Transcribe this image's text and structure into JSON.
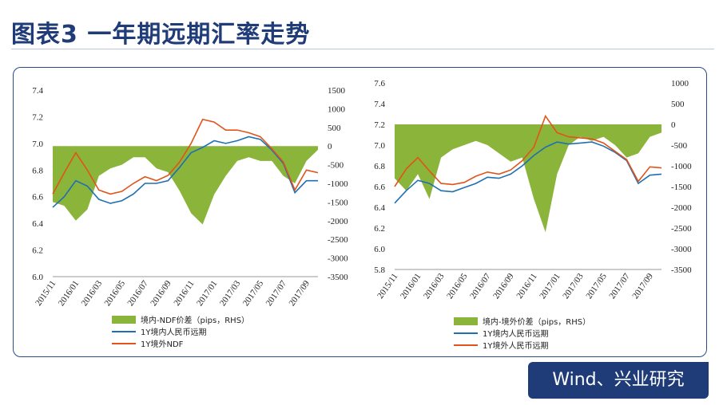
{
  "page": {
    "title": "图表3 一年期远期汇率走势",
    "source": "Wind、兴业研究"
  },
  "colors": {
    "spread": "#8bb53a",
    "onshore": "#1f6fb3",
    "offshore": "#e0541b",
    "title": "#1f3b78"
  },
  "chart_data": [
    {
      "type": "line",
      "x_ticks": [
        "2015/11",
        "2016/01",
        "2016/03",
        "2016/05",
        "2016/07",
        "2016/09",
        "2016/11",
        "2017/01",
        "2017/03",
        "2017/05",
        "2017/07",
        "2017/09"
      ],
      "ylim": [
        6.0,
        7.4
      ],
      "y_ticks": [
        "6.0",
        "6.2",
        "6.4",
        "6.6",
        "6.8",
        "7.0",
        "7.2",
        "7.4"
      ],
      "y2lim": [
        -3500,
        1500
      ],
      "y2_ticks": [
        "-3500",
        "-3000",
        "-2500",
        "-2000",
        "-1500",
        "-1000",
        "-500",
        "0",
        "500",
        "1000",
        "1500"
      ],
      "x": [
        "2015/11",
        "2015/12",
        "2016/01",
        "2016/02",
        "2016/03",
        "2016/04",
        "2016/05",
        "2016/06",
        "2016/07",
        "2016/08",
        "2016/09",
        "2016/10",
        "2016/11",
        "2016/12",
        "2017/01",
        "2017/02",
        "2017/03",
        "2017/04",
        "2017/05",
        "2017/06",
        "2017/07",
        "2017/08",
        "2017/09",
        "2017/10"
      ],
      "series": [
        {
          "name": "境内-NDF价差（pips，RHS）",
          "axis": "right",
          "kind": "area",
          "values": [
            -1500,
            -1600,
            -2000,
            -1700,
            -800,
            -600,
            -500,
            -300,
            -300,
            -600,
            -700,
            -1200,
            -1800,
            -2100,
            -1300,
            -800,
            -400,
            -300,
            -400,
            -400,
            -800,
            -1000,
            -400,
            -100
          ]
        },
        {
          "name": "1Y境内人民币远期",
          "axis": "left",
          "kind": "line",
          "values": [
            6.52,
            6.6,
            6.72,
            6.68,
            6.58,
            6.55,
            6.57,
            6.62,
            6.7,
            6.7,
            6.72,
            6.82,
            6.93,
            6.97,
            7.02,
            7.0,
            7.02,
            7.05,
            7.03,
            6.95,
            6.85,
            6.63,
            6.72,
            6.72
          ]
        },
        {
          "name": "1Y境外NDF",
          "axis": "left",
          "kind": "line",
          "values": [
            6.62,
            6.78,
            6.93,
            6.8,
            6.65,
            6.62,
            6.64,
            6.7,
            6.75,
            6.72,
            6.76,
            6.86,
            7.0,
            7.18,
            7.16,
            7.1,
            7.1,
            7.08,
            7.05,
            6.96,
            6.86,
            6.65,
            6.8,
            6.78
          ]
        }
      ]
    },
    {
      "type": "line",
      "x_ticks": [
        "2015/11",
        "2016/01",
        "2016/03",
        "2016/05",
        "2016/07",
        "2016/09",
        "2016/11",
        "2017/01",
        "2017/03",
        "2017/05",
        "2017/07",
        "2017/09"
      ],
      "ylim": [
        5.8,
        7.6
      ],
      "y_ticks": [
        "5.8",
        "6.0",
        "6.2",
        "6.4",
        "6.6",
        "6.8",
        "7.0",
        "7.2",
        "7.4",
        "7.6"
      ],
      "y2lim": [
        -3500,
        1000
      ],
      "y2_ticks": [
        "-3500",
        "-3000",
        "-2500",
        "-2000",
        "-1500",
        "-1000",
        "-500",
        "0",
        "500",
        "1000"
      ],
      "x": [
        "2015/11",
        "2015/12",
        "2016/01",
        "2016/02",
        "2016/03",
        "2016/04",
        "2016/05",
        "2016/06",
        "2016/07",
        "2016/08",
        "2016/09",
        "2016/10",
        "2016/11",
        "2016/12",
        "2017/01",
        "2017/02",
        "2017/03",
        "2017/04",
        "2017/05",
        "2017/06",
        "2017/07",
        "2017/08",
        "2017/09",
        "2017/10"
      ],
      "series": [
        {
          "name": "境内-境外价差（pips，RHS）",
          "axis": "right",
          "kind": "area",
          "values": [
            -1300,
            -1600,
            -1200,
            -1800,
            -800,
            -600,
            -500,
            -400,
            -500,
            -700,
            -900,
            -800,
            -1800,
            -2600,
            -1200,
            -500,
            -300,
            -400,
            -300,
            -500,
            -800,
            -700,
            -300,
            -200
          ]
        },
        {
          "name": "1Y境内人民币远期",
          "axis": "left",
          "kind": "line",
          "values": [
            6.44,
            6.56,
            6.66,
            6.63,
            6.56,
            6.55,
            6.59,
            6.63,
            6.69,
            6.68,
            6.72,
            6.8,
            6.9,
            6.98,
            7.03,
            7.01,
            7.02,
            7.03,
            6.99,
            6.93,
            6.85,
            6.63,
            6.71,
            6.72
          ]
        },
        {
          "name": "1Y境外人民币远期",
          "axis": "left",
          "kind": "line",
          "values": [
            6.6,
            6.77,
            6.88,
            6.75,
            6.63,
            6.62,
            6.64,
            6.7,
            6.74,
            6.72,
            6.76,
            6.85,
            6.98,
            7.28,
            7.12,
            7.08,
            7.07,
            7.06,
            7.02,
            6.94,
            6.86,
            6.65,
            6.79,
            6.78
          ]
        }
      ]
    }
  ]
}
